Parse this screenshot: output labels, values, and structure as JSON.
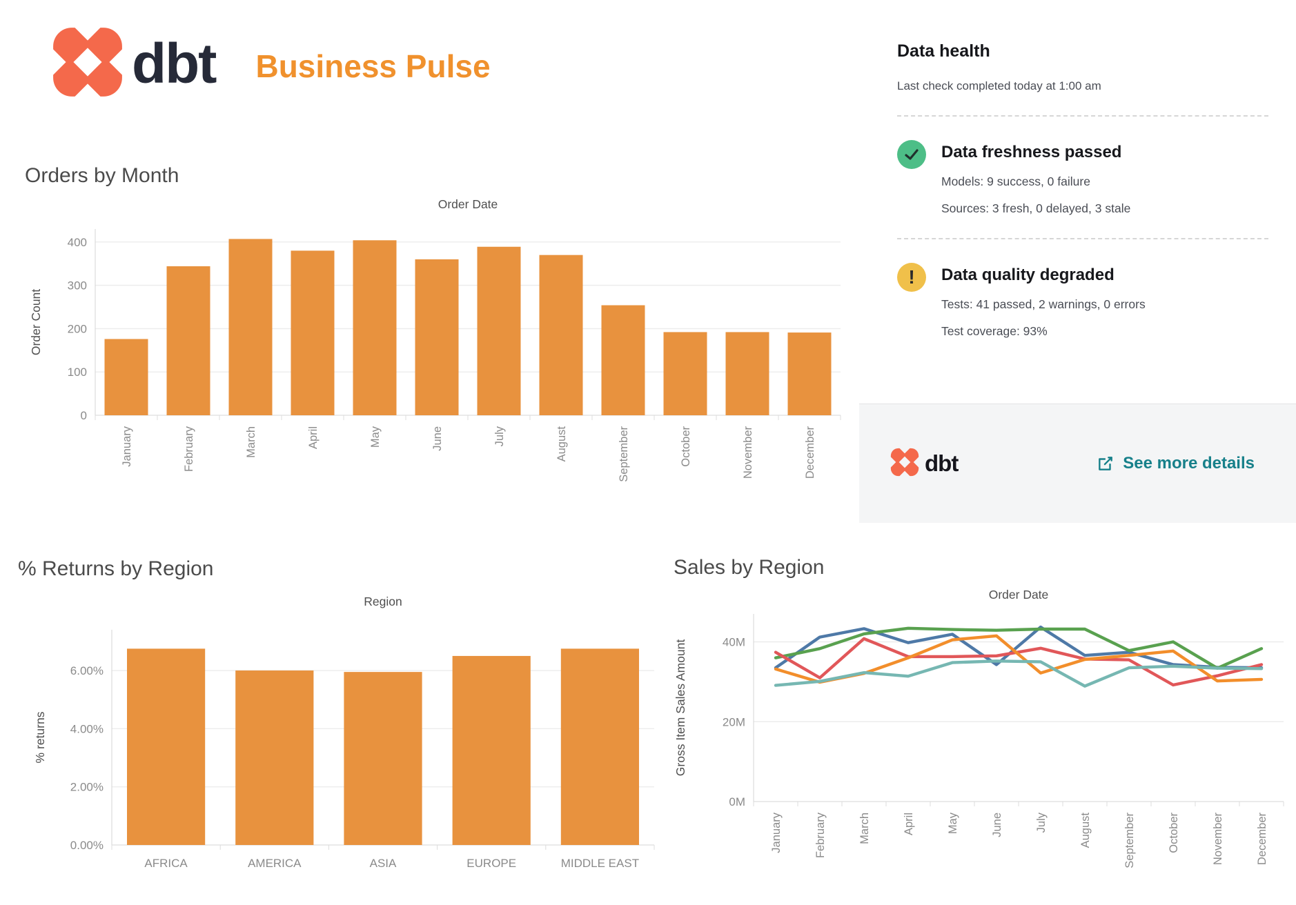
{
  "header": {
    "brand": "dbt",
    "title": "Business Pulse"
  },
  "data_health": {
    "title": "Data health",
    "subtitle": "Last check completed today at 1:00 am",
    "items": [
      {
        "status": "passed",
        "icon": "check-icon",
        "title": "Data freshness passed",
        "lines": [
          "Models: 9 success, 0 failure",
          "Sources: 3 fresh, 0 delayed, 3 stale"
        ]
      },
      {
        "status": "warning",
        "icon": "warning-icon",
        "warning_glyph": "!",
        "title": "Data quality degraded",
        "lines": [
          "Tests: 41 passed, 2 warnings, 0 errors",
          "Test coverage: 93%"
        ]
      }
    ],
    "footer": {
      "brand": "dbt",
      "link_label": "See more details",
      "link_icon": "external-link-icon"
    }
  },
  "colors": {
    "bar_orange": "#e8923e",
    "brand_orange": "#f4694b",
    "title_orange": "#f0912d",
    "link_teal": "#17808a",
    "badge_green": "#4dbe87",
    "badge_yellow": "#f0c04a"
  },
  "chart_data": [
    {
      "id": "orders_by_month",
      "type": "bar",
      "title": "Orders by Month",
      "axis_title": "Order Date",
      "xlabel": "Order Date",
      "ylabel": "Order Count",
      "categories": [
        "January",
        "February",
        "March",
        "April",
        "May",
        "June",
        "July",
        "August",
        "September",
        "October",
        "November",
        "December"
      ],
      "values": [
        176,
        344,
        407,
        380,
        404,
        360,
        389,
        370,
        254,
        192,
        192,
        191
      ],
      "yticks": [
        0,
        100,
        200,
        300,
        400
      ],
      "ylim": [
        0,
        430
      ],
      "grid": true,
      "bar_color": "#e8923e",
      "x_labels_rotated": true
    },
    {
      "id": "returns_by_region",
      "type": "bar",
      "title": "% Returns by Region",
      "axis_title": "Region",
      "xlabel": "Region",
      "ylabel": "% returns",
      "categories": [
        "AFRICA",
        "AMERICA",
        "ASIA",
        "EUROPE",
        "MIDDLE EAST"
      ],
      "values": [
        6.75,
        6.0,
        5.95,
        6.5,
        6.75
      ],
      "yticks": [
        "0.00%",
        "2.00%",
        "4.00%",
        "6.00%"
      ],
      "ylim": [
        0,
        7.4
      ],
      "grid": true,
      "bar_color": "#e8923e",
      "x_labels_rotated": false
    },
    {
      "id": "sales_by_region",
      "type": "line",
      "title": "Sales by Region",
      "axis_title": "Order Date",
      "xlabel": "Order Date",
      "ylabel": "Gross Item Sales Amount",
      "categories": [
        "January",
        "February",
        "March",
        "April",
        "May",
        "June",
        "July",
        "August",
        "September",
        "October",
        "November",
        "December"
      ],
      "unit": "M",
      "series": [
        {
          "name": "blue",
          "color": "#4e79a7",
          "values": [
            33.5,
            41.2,
            43.3,
            39.8,
            41.9,
            34.3,
            43.7,
            36.6,
            37.4,
            34.3,
            33.6,
            33.5
          ]
        },
        {
          "name": "green",
          "color": "#59a14f",
          "values": [
            36.0,
            38.3,
            42.0,
            43.4,
            43.1,
            42.9,
            43.2,
            43.2,
            37.8,
            40.0,
            33.4,
            38.3
          ]
        },
        {
          "name": "red",
          "color": "#e15759",
          "values": [
            37.4,
            31.0,
            40.8,
            36.3,
            36.3,
            36.5,
            38.4,
            35.7,
            35.5,
            29.2,
            31.5,
            34.3
          ]
        },
        {
          "name": "orange",
          "color": "#f28e2b",
          "values": [
            33.2,
            29.9,
            32.1,
            36.0,
            40.5,
            41.5,
            32.2,
            35.6,
            36.6,
            37.7,
            30.2,
            30.6
          ]
        },
        {
          "name": "teal",
          "color": "#76b7b2",
          "values": [
            29.1,
            30.1,
            32.3,
            31.4,
            34.8,
            35.2,
            35.0,
            28.9,
            33.5,
            33.9,
            33.4,
            33.3
          ]
        }
      ],
      "yticks": [
        "0M",
        "20M",
        "40M"
      ],
      "ylim": [
        0,
        47
      ],
      "grid": true,
      "legend": "none",
      "x_labels_rotated": true
    }
  ]
}
